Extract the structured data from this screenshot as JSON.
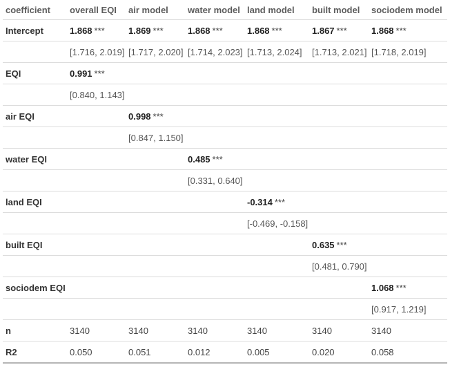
{
  "header": [
    "coefficient",
    "overall EQI",
    "air model",
    "water model",
    "land model",
    "built model",
    "sociodem model"
  ],
  "rows": [
    {
      "label": "Intercept",
      "cells": [
        {
          "est": "1.868",
          "sig": "***"
        },
        {
          "est": "1.869",
          "sig": "***"
        },
        {
          "est": "1.868",
          "sig": "***"
        },
        {
          "est": "1.868",
          "sig": "***"
        },
        {
          "est": "1.867",
          "sig": "***"
        },
        {
          "est": "1.868",
          "sig": "***"
        }
      ]
    },
    {
      "label": "",
      "cells": [
        {
          "ci": "[1.716, 2.019]"
        },
        {
          "ci": "[1.717, 2.020]"
        },
        {
          "ci": "[1.714, 2.023]"
        },
        {
          "ci": "[1.713, 2.024]"
        },
        {
          "ci": "[1.713, 2.021]"
        },
        {
          "ci": "[1.718, 2.019]"
        }
      ]
    },
    {
      "label": "EQI",
      "cells": [
        {
          "est": "0.991",
          "sig": "***"
        },
        {},
        {},
        {},
        {},
        {}
      ]
    },
    {
      "label": "",
      "cells": [
        {
          "ci": "[0.840, 1.143]"
        },
        {},
        {},
        {},
        {},
        {}
      ]
    },
    {
      "label": "air EQI",
      "cells": [
        {},
        {
          "est": "0.998",
          "sig": "***"
        },
        {},
        {},
        {},
        {}
      ]
    },
    {
      "label": "",
      "cells": [
        {},
        {
          "ci": "[0.847, 1.150]"
        },
        {},
        {},
        {},
        {}
      ]
    },
    {
      "label": "water EQI",
      "cells": [
        {},
        {},
        {
          "est": "0.485",
          "sig": "***"
        },
        {},
        {},
        {}
      ]
    },
    {
      "label": "",
      "cells": [
        {},
        {},
        {
          "ci": "[0.331, 0.640]"
        },
        {},
        {},
        {}
      ]
    },
    {
      "label": "land EQI",
      "cells": [
        {},
        {},
        {},
        {
          "est": "-0.314",
          "sig": "***"
        },
        {},
        {}
      ]
    },
    {
      "label": "",
      "cells": [
        {},
        {},
        {},
        {
          "ci": "[-0.469, -0.158]"
        },
        {},
        {}
      ]
    },
    {
      "label": "built EQI",
      "cells": [
        {},
        {},
        {},
        {},
        {
          "est": "0.635",
          "sig": "***"
        },
        {}
      ]
    },
    {
      "label": "",
      "cells": [
        {},
        {},
        {},
        {},
        {
          "ci": "[0.481, 0.790]"
        },
        {}
      ]
    },
    {
      "label": "sociodem EQI",
      "cells": [
        {},
        {},
        {},
        {},
        {},
        {
          "est": "1.068",
          "sig": "***"
        }
      ]
    },
    {
      "label": "",
      "cells": [
        {},
        {},
        {},
        {},
        {},
        {
          "ci": "[0.917, 1.219]"
        }
      ]
    },
    {
      "label": "n",
      "cells": [
        {
          "plain": "3140"
        },
        {
          "plain": "3140"
        },
        {
          "plain": "3140"
        },
        {
          "plain": "3140"
        },
        {
          "plain": "3140"
        },
        {
          "plain": "3140"
        }
      ]
    },
    {
      "label": "R2",
      "cells": [
        {
          "plain": "0.050"
        },
        {
          "plain": "0.051"
        },
        {
          "plain": "0.012"
        },
        {
          "plain": "0.005"
        },
        {
          "plain": "0.020"
        },
        {
          "plain": "0.058"
        }
      ]
    }
  ]
}
